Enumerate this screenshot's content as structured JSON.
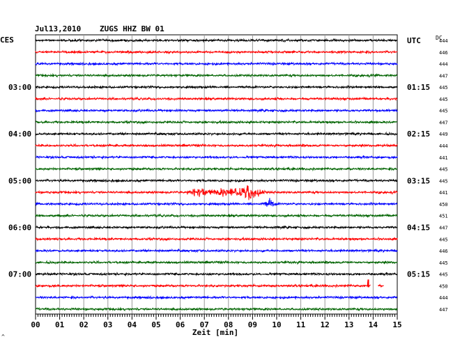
{
  "header": {
    "date": "Jul13,2010",
    "station": "ZUGS HHZ BW 01",
    "left_timezone": "CES",
    "right_timezone": "UTC",
    "dc_label": "DC",
    "corner_mark": "^"
  },
  "chart_data": {
    "type": "line",
    "title": "Jul13,2010   ZUGS HHZ BW 01",
    "xlabel": "Zeit [min]",
    "xlim": [
      0,
      15
    ],
    "x_tick_labels": [
      "00",
      "01",
      "02",
      "03",
      "04",
      "05",
      "06",
      "07",
      "08",
      "09",
      "10",
      "11",
      "12",
      "13",
      "14",
      "15"
    ],
    "grid": true,
    "trace_count": 24,
    "trace_colors": [
      "#000000",
      "#ff0000",
      "#0000ff",
      "#006400"
    ],
    "left_hour_labels": [
      {
        "trace": 4,
        "label": "03:00"
      },
      {
        "trace": 8,
        "label": "04:00"
      },
      {
        "trace": 12,
        "label": "05:00"
      },
      {
        "trace": 16,
        "label": "06:00"
      },
      {
        "trace": 20,
        "label": "07:00"
      }
    ],
    "right_hour_labels": [
      {
        "trace": 0,
        "label": "UTC"
      },
      {
        "trace": 4,
        "label": "01:15"
      },
      {
        "trace": 8,
        "label": "02:15"
      },
      {
        "trace": 12,
        "label": "03:15"
      },
      {
        "trace": 16,
        "label": "04:15"
      },
      {
        "trace": 20,
        "label": "05:15"
      }
    ],
    "dc_offsets": [
      444,
      446,
      444,
      447,
      445,
      445,
      445,
      447,
      449,
      444,
      441,
      445,
      445,
      441,
      450,
      451,
      447,
      445,
      446,
      445,
      445,
      450,
      444,
      447
    ],
    "events": [
      {
        "trace": 13,
        "start_min": 6.3,
        "end_min": 10.4,
        "peak_min": 9.0,
        "amplitude": "large"
      },
      {
        "trace": 14,
        "start_min": 9.3,
        "end_min": 10.0,
        "peak_min": 9.7,
        "amplitude": "medium"
      }
    ],
    "spikes": [
      {
        "trace": 21,
        "min": 13.8
      }
    ],
    "gaps": [
      {
        "trace": 21,
        "start_min": 13.9,
        "end_min": 14.2
      },
      {
        "trace": 21,
        "start_min": 14.45,
        "end_min": 15.0
      }
    ]
  }
}
